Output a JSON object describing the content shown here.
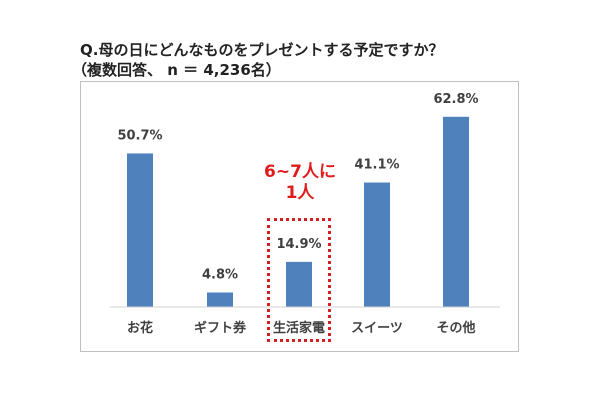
{
  "chart_data": {
    "type": "bar",
    "title": "Q.母の日にどんなものをプレゼントする予定ですか？",
    "subtitle": "（複数回答、 n ＝ 4,236名）",
    "categories": [
      "お花",
      "ギフト券",
      "生活家電",
      "スイーツ",
      "その他"
    ],
    "values": [
      50.7,
      4.8,
      14.9,
      41.1,
      62.8
    ],
    "value_labels": [
      "50.7%",
      "4.8%",
      "14.9%",
      "41.1%",
      "62.8%"
    ],
    "unit": "%",
    "ylim": [
      0,
      70
    ],
    "grid": false,
    "legend": "none",
    "bar_color": "#4f81bd",
    "annotations": [
      {
        "text_line1": "6~7人に",
        "text_line2": "1人",
        "target_category": "生活家電",
        "color": "#e01b1b"
      }
    ]
  }
}
